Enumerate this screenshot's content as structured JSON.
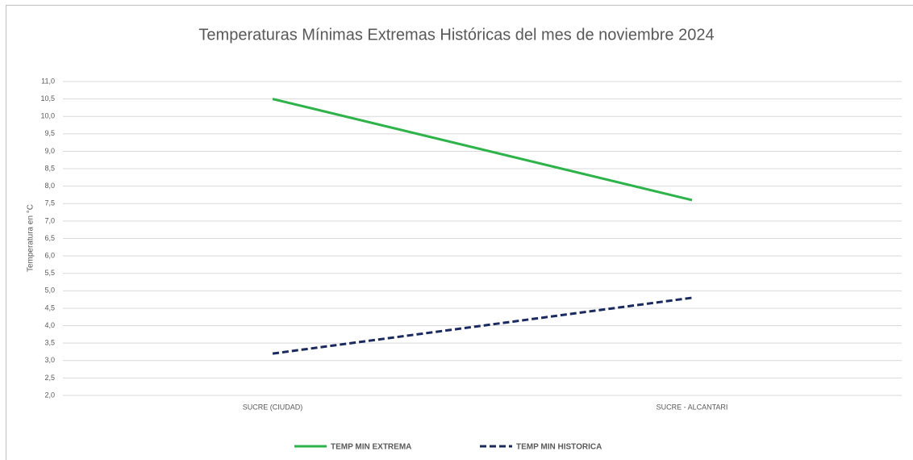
{
  "chart_data": {
    "type": "line",
    "title": "Temperaturas Mínimas Extremas Históricas del mes de noviembre 2024",
    "y_label": "Temperatura en °C",
    "categories": [
      "SUCRE (CIUDAD)",
      "SUCRE - ALCANTARI"
    ],
    "series": [
      {
        "name": "TEMP MIN EXTREMA",
        "color": "#2db34a",
        "dash": false,
        "values": [
          10.5,
          7.6
        ]
      },
      {
        "name": "TEMP MIN HISTORICA",
        "color": "#1b2a5e",
        "dash": true,
        "values": [
          3.2,
          4.8
        ]
      }
    ],
    "ylim": [
      2,
      11
    ],
    "yticks": [
      {
        "value": 2,
        "label": "2,0"
      },
      {
        "value": 2.5,
        "label": "2,5"
      },
      {
        "value": 3,
        "label": "3,0"
      },
      {
        "value": 3.5,
        "label": "3,5"
      },
      {
        "value": 4,
        "label": "4,0"
      },
      {
        "value": 4.5,
        "label": "4,5"
      },
      {
        "value": 5,
        "label": "5,0"
      },
      {
        "value": 5.5,
        "label": "5,5"
      },
      {
        "value": 6,
        "label": "6,0"
      },
      {
        "value": 6.5,
        "label": "6,5"
      },
      {
        "value": 7,
        "label": "7,0"
      },
      {
        "value": 7.5,
        "label": "7,5"
      },
      {
        "value": 8,
        "label": "8,0"
      },
      {
        "value": 8.5,
        "label": "8,5"
      },
      {
        "value": 9,
        "label": "9,0"
      },
      {
        "value": 9.5,
        "label": "9,5"
      },
      {
        "value": 10,
        "label": "10,0"
      },
      {
        "value": 10.5,
        "label": "10,5"
      },
      {
        "value": 11,
        "label": "11,0"
      }
    ],
    "grid": true,
    "legend": "bottom"
  }
}
